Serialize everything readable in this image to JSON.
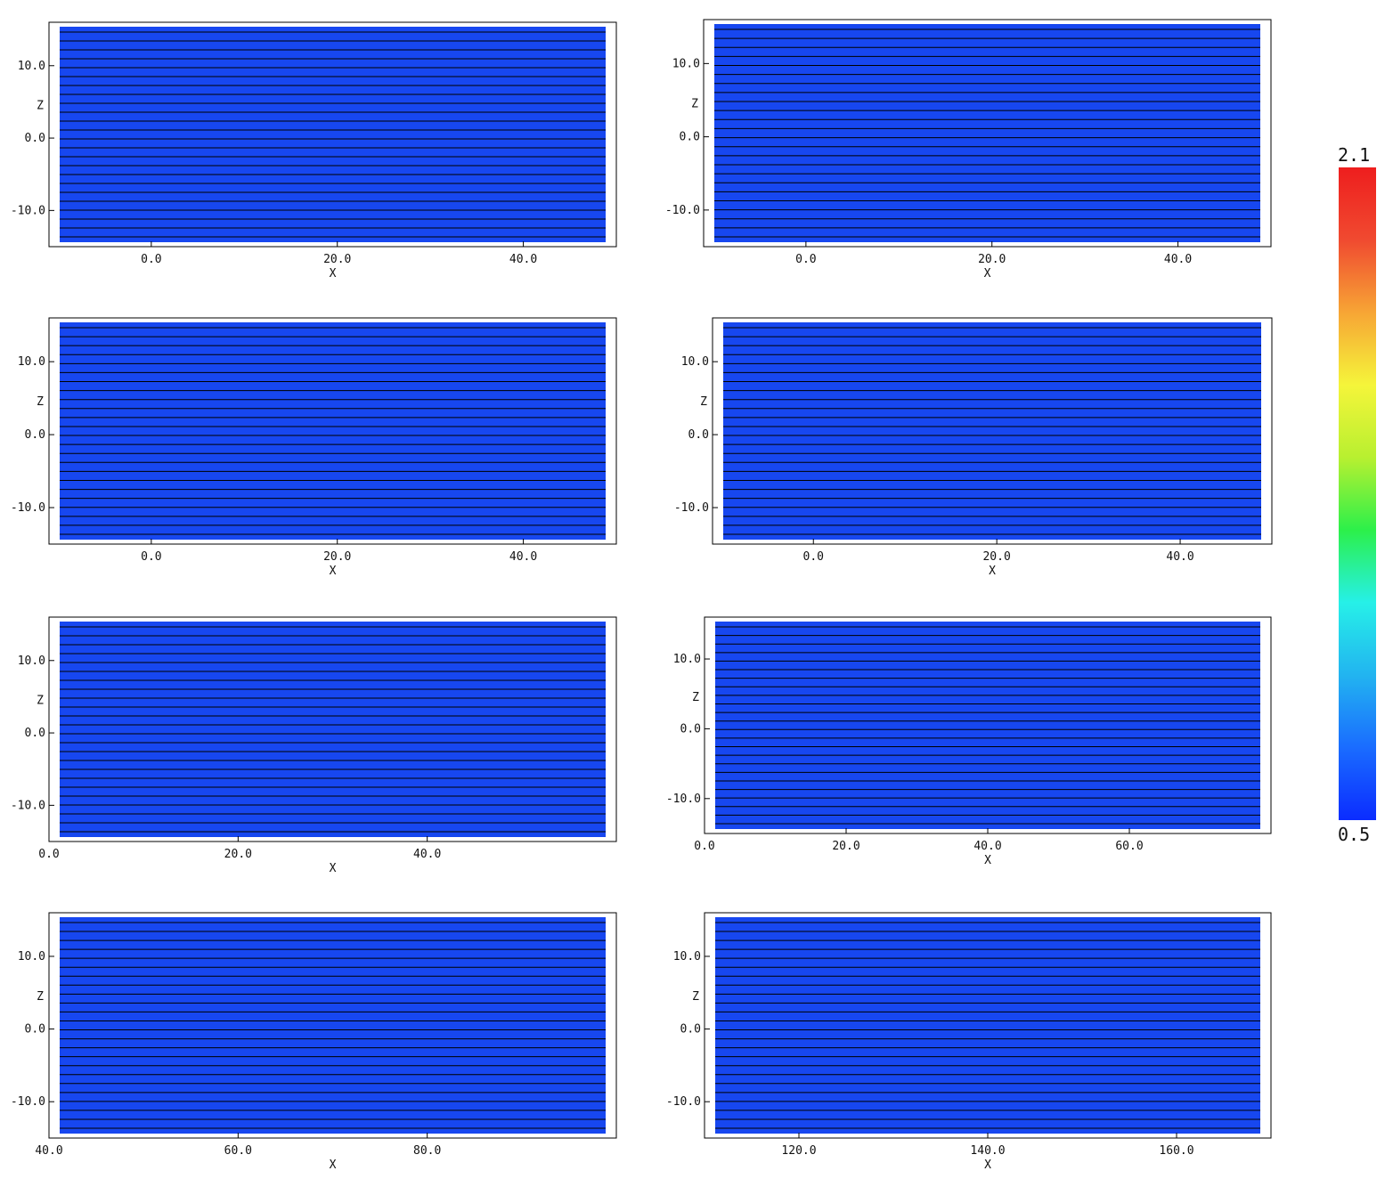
{
  "colors": {
    "background_field": "#1747f0",
    "colormap": [
      "#0b2cff",
      "#1a6cff",
      "#22b4f0",
      "#26f0e8",
      "#2cf04a",
      "#b8f030",
      "#f5f53a",
      "#f7a535",
      "#f04a30",
      "#ee1e1e"
    ],
    "streamline": "#000000"
  },
  "colorbar": {
    "max_label": "2.1",
    "min_label": "0.5"
  },
  "chart_data": [
    {
      "type": "heatmap",
      "panel": 1,
      "xlabel": "X",
      "ylabel": "Z",
      "xticks": [
        "0.0",
        "20.0",
        "40.0"
      ],
      "yticks": [
        "10.0",
        "0.0",
        "-10.0"
      ],
      "xlim": [
        -11,
        50
      ],
      "ylim": [
        -15,
        16
      ],
      "colorbar_range": [
        0.5,
        2.1
      ]
    },
    {
      "type": "heatmap",
      "panel": 2,
      "xlabel": "X",
      "ylabel": "Z",
      "xticks": [
        "0.0",
        "20.0",
        "40.0"
      ],
      "yticks": [
        "10.0",
        "0.0",
        "-10.0"
      ],
      "xlim": [
        -11,
        50
      ],
      "ylim": [
        -15,
        16
      ],
      "colorbar_range": [
        0.5,
        2.1
      ]
    },
    {
      "type": "heatmap",
      "panel": 3,
      "xlabel": "X",
      "ylabel": "Z",
      "xticks": [
        "0.0",
        "20.0",
        "40.0"
      ],
      "yticks": [
        "10.0",
        "0.0",
        "-10.0"
      ],
      "xlim": [
        -11,
        50
      ],
      "ylim": [
        -15,
        16
      ],
      "colorbar_range": [
        0.5,
        2.1
      ]
    },
    {
      "type": "heatmap",
      "panel": 4,
      "xlabel": "X",
      "ylabel": "Z",
      "xticks": [
        "0.0",
        "20.0",
        "40.0"
      ],
      "yticks": [
        "10.0",
        "0.0",
        "-10.0"
      ],
      "xlim": [
        -11,
        50
      ],
      "ylim": [
        -15,
        16
      ],
      "colorbar_range": [
        0.5,
        2.1
      ]
    },
    {
      "type": "heatmap",
      "panel": 5,
      "xlabel": "X",
      "ylabel": "Z",
      "xticks": [
        "0.0",
        "20.0",
        "40.0"
      ],
      "yticks": [
        "10.0",
        "0.0",
        "-10.0"
      ],
      "xlim": [
        0,
        60
      ],
      "ylim": [
        -15,
        16
      ],
      "colorbar_range": [
        0.5,
        2.1
      ]
    },
    {
      "type": "heatmap",
      "panel": 6,
      "xlabel": "X",
      "ylabel": "Z",
      "xticks": [
        "0.0",
        "20.0",
        "40.0",
        "60.0"
      ],
      "yticks": [
        "10.0",
        "0.0",
        "-10.0"
      ],
      "xlim": [
        0,
        80
      ],
      "ylim": [
        -15,
        16
      ],
      "colorbar_range": [
        0.5,
        2.1
      ]
    },
    {
      "type": "heatmap",
      "panel": 7,
      "xlabel": "X",
      "ylabel": "Z",
      "xticks": [
        "40.0",
        "60.0",
        "80.0"
      ],
      "yticks": [
        "10.0",
        "0.0",
        "-10.0"
      ],
      "xlim": [
        40,
        100
      ],
      "ylim": [
        -15,
        16
      ],
      "colorbar_range": [
        0.5,
        2.1
      ]
    },
    {
      "type": "heatmap",
      "panel": 8,
      "xlabel": "X",
      "ylabel": "Z",
      "xticks": [
        "120.0",
        "140.0",
        "160.0"
      ],
      "yticks": [
        "10.0",
        "0.0",
        "-10.0"
      ],
      "xlim": [
        110,
        170
      ],
      "ylim": [
        -15,
        16
      ],
      "colorbar_range": [
        0.5,
        2.1
      ]
    }
  ]
}
